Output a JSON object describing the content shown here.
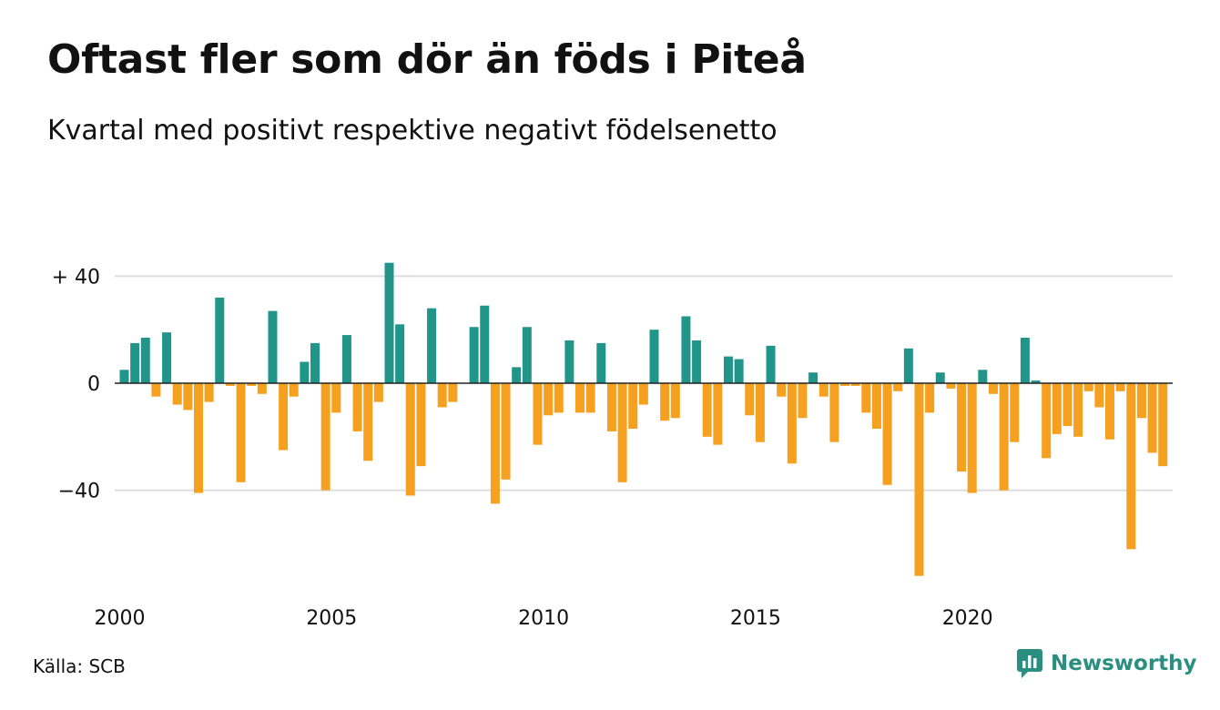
{
  "title": "Oftast fler som dör än föds i Piteå",
  "subtitle": "Kvartal med positivt respektive negativt födelsenetto",
  "source": "Källa: SCB",
  "brand": {
    "name": "Newsworthy",
    "icon": "newsworthy-logo-icon",
    "color": "#2a8f80"
  },
  "colors": {
    "positive": "#21958a",
    "negative": "#f5a01f",
    "grid": "#dddddd",
    "axis": "#222222"
  },
  "chart_data": {
    "type": "bar",
    "title": "Oftast fler som dör än föds i Piteå",
    "subtitle": "Kvartal med positivt respektive negativt födelsenetto",
    "xlabel": "",
    "ylabel": "",
    "x_start": 2000,
    "periods_per_year": 4,
    "ylim": [
      -75,
      45
    ],
    "y_ticks": [
      {
        "value": 40,
        "label": "+ 40"
      },
      {
        "value": 0,
        "label": "0"
      },
      {
        "value": -40,
        "label": "−40"
      }
    ],
    "x_ticks": [
      "2000",
      "2005",
      "2010",
      "2015",
      "2020"
    ],
    "grid": true,
    "values": [
      5,
      15,
      17,
      -5,
      19,
      -8,
      -10,
      -41,
      -7,
      32,
      -1,
      -37,
      -1,
      -4,
      27,
      -25,
      -5,
      8,
      15,
      -40,
      -11,
      18,
      -18,
      -29,
      -7,
      45,
      22,
      -42,
      -31,
      28,
      -9,
      -7,
      0,
      21,
      29,
      -45,
      -36,
      6,
      21,
      -23,
      -12,
      -11,
      16,
      -11,
      -11,
      15,
      -18,
      -37,
      -17,
      -8,
      20,
      -14,
      -13,
      25,
      16,
      -20,
      -23,
      10,
      9,
      -12,
      -22,
      14,
      -5,
      -30,
      -13,
      4,
      -5,
      -22,
      -1,
      -1,
      -11,
      -17,
      -38,
      -3,
      13,
      -72,
      -11,
      4,
      -2,
      -33,
      -41,
      5,
      -4,
      -40,
      -22,
      17,
      1,
      -28,
      -19,
      -16,
      -20,
      -3,
      -9,
      -21,
      -3,
      -62,
      -13,
      -26,
      -31
    ]
  }
}
